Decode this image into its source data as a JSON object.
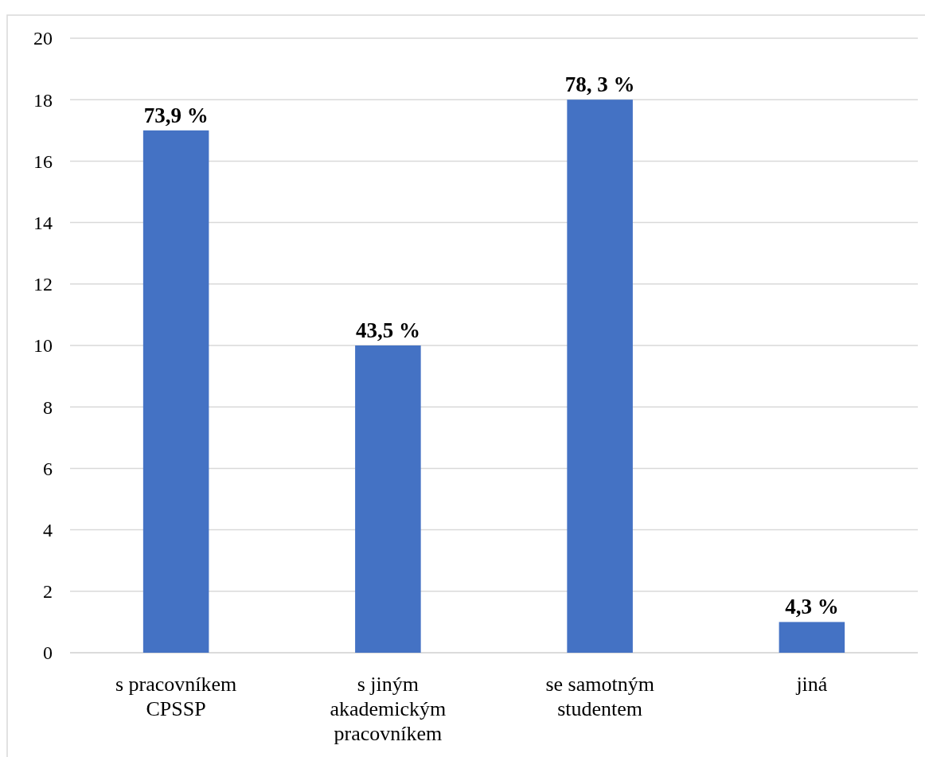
{
  "chart_data": {
    "type": "bar",
    "categories": [
      "s pracovníkem CPSSP",
      "s jiným akademickým pracovníkem",
      "se samotným studentem",
      "jiná"
    ],
    "values": [
      17,
      10,
      18,
      1
    ],
    "color": "#4472c4",
    "annotations": [
      {
        "text": "73,9 %",
        "x": "s pracovníkem CPSSP",
        "y": 17
      },
      {
        "text": "43,5 %",
        "x": "s jiným akademickým pracovníkem",
        "y": 10
      },
      {
        "text": "78, 3 %",
        "x": "se samotným studentem",
        "y": 18
      },
      {
        "text": "4,3 %",
        "x": "jiná",
        "y": 1
      }
    ],
    "ylim": [
      0,
      20
    ],
    "yticks": [
      0,
      2,
      4,
      6,
      8,
      10,
      12,
      14,
      16,
      18,
      20
    ],
    "grid": "y"
  }
}
